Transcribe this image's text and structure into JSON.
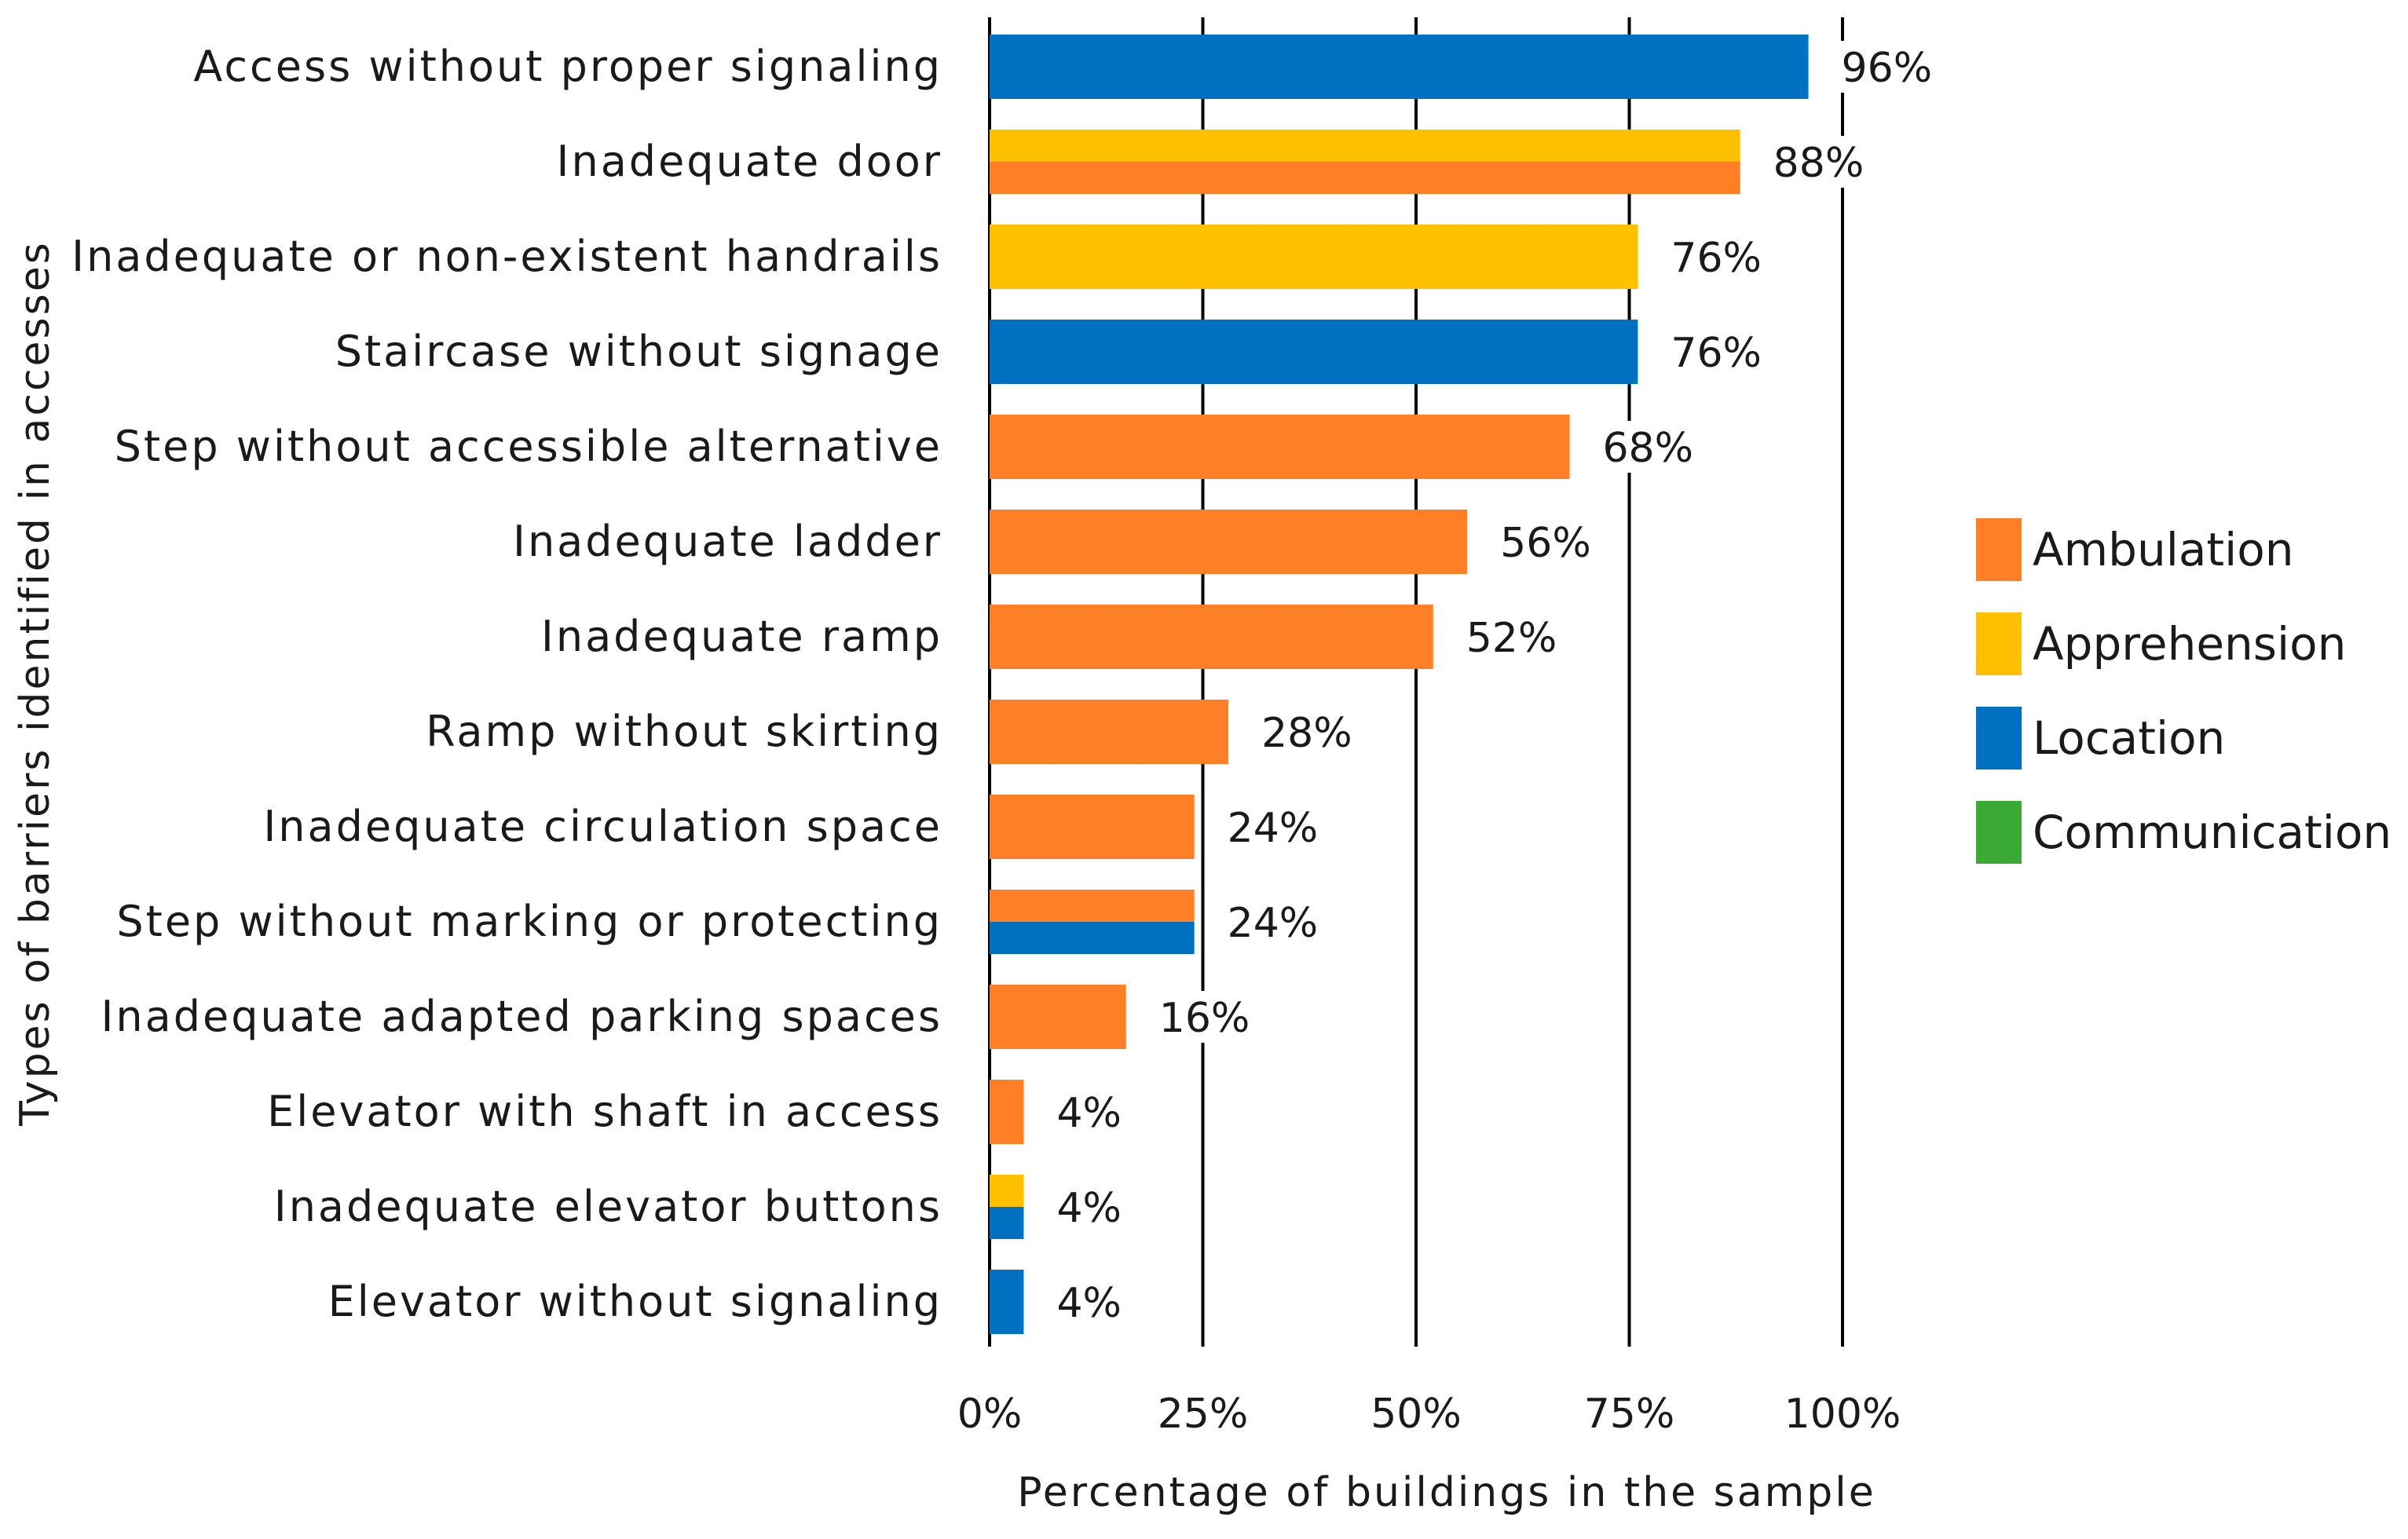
{
  "chart_data": {
    "type": "bar",
    "orientation": "horizontal",
    "xlabel": "Percentage of buildings in the sample",
    "ylabel": "Types of barriers identified in accesses",
    "xlim": [
      0,
      100
    ],
    "ticks": [
      {
        "value": 0,
        "label": "0%"
      },
      {
        "value": 25,
        "label": "25%"
      },
      {
        "value": 50,
        "label": "50%"
      },
      {
        "value": 75,
        "label": "75%"
      },
      {
        "value": 100,
        "label": "100%"
      }
    ],
    "grid": "vertical",
    "legend_position": "right",
    "legend": [
      {
        "name": "Ambulation",
        "color": "#FF7F27"
      },
      {
        "name": "Apprehension",
        "color": "#FFC000"
      },
      {
        "name": "Location",
        "color": "#0070C0"
      },
      {
        "name": "Communication",
        "color": "#3AAA35"
      }
    ],
    "categories": [
      {
        "label": "Access without proper signaling",
        "value": 96,
        "value_label": "96%",
        "groups": [
          "Location"
        ]
      },
      {
        "label": "Inadequate door",
        "value": 88,
        "value_label": "88%",
        "groups": [
          "Apprehension",
          "Ambulation"
        ]
      },
      {
        "label": "Inadequate or non-existent handrails",
        "value": 76,
        "value_label": "76%",
        "groups": [
          "Apprehension"
        ]
      },
      {
        "label": "Staircase without signage",
        "value": 76,
        "value_label": "76%",
        "groups": [
          "Location"
        ]
      },
      {
        "label": "Step without accessible alternative",
        "value": 68,
        "value_label": "68%",
        "groups": [
          "Ambulation"
        ]
      },
      {
        "label": "Inadequate ladder",
        "value": 56,
        "value_label": "56%",
        "groups": [
          "Ambulation"
        ]
      },
      {
        "label": "Inadequate ramp",
        "value": 52,
        "value_label": "52%",
        "groups": [
          "Ambulation"
        ]
      },
      {
        "label": "Ramp without skirting",
        "value": 28,
        "value_label": "28%",
        "groups": [
          "Ambulation"
        ]
      },
      {
        "label": "Inadequate circulation space",
        "value": 24,
        "value_label": "24%",
        "groups": [
          "Ambulation"
        ]
      },
      {
        "label": "Step without marking or protecting",
        "value": 24,
        "value_label": "24%",
        "groups": [
          "Ambulation",
          "Location"
        ]
      },
      {
        "label": "Inadequate adapted parking spaces",
        "value": 16,
        "value_label": "16%",
        "groups": [
          "Ambulation"
        ]
      },
      {
        "label": "Elevator with shaft in access",
        "value": 4,
        "value_label": "4%",
        "groups": [
          "Ambulation"
        ]
      },
      {
        "label": "Inadequate elevator buttons",
        "value": 4,
        "value_label": "4%",
        "groups": [
          "Apprehension",
          "Location"
        ]
      },
      {
        "label": "Elevator without signaling",
        "value": 4,
        "value_label": "4%",
        "groups": [
          "Location"
        ]
      }
    ]
  }
}
